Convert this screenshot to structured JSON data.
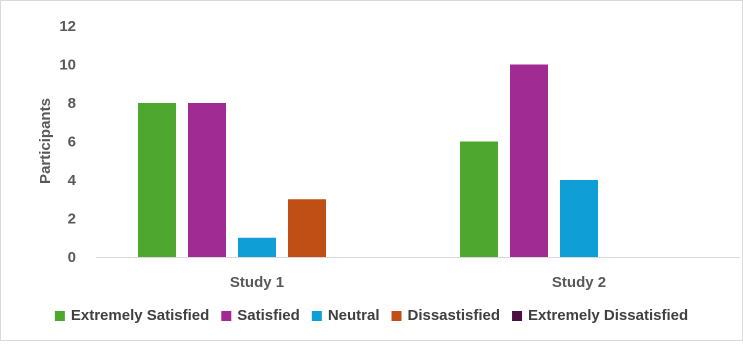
{
  "chart_data": {
    "type": "bar",
    "title": "",
    "xlabel": "",
    "ylabel": "Participants",
    "ylim": [
      0,
      12
    ],
    "yticks": [
      0,
      2,
      4,
      6,
      8,
      10,
      12
    ],
    "categories": [
      "Study 1",
      "Study 2"
    ],
    "grid": false,
    "legend_position": "bottom",
    "series": [
      {
        "name": "Extremely Satisfied",
        "color": "#4ea72e",
        "values": [
          8,
          6
        ]
      },
      {
        "name": "Satisfied",
        "color": "#a02b93",
        "values": [
          8,
          10
        ]
      },
      {
        "name": "Neutral",
        "color": "#0f9ed5",
        "values": [
          1,
          4
        ]
      },
      {
        "name": "Dissastisfied",
        "color": "#c04f15",
        "values": [
          3,
          0
        ]
      },
      {
        "name": "Extremely Dissatisfied",
        "color": "#4c1044",
        "values": [
          0,
          0
        ]
      }
    ]
  }
}
